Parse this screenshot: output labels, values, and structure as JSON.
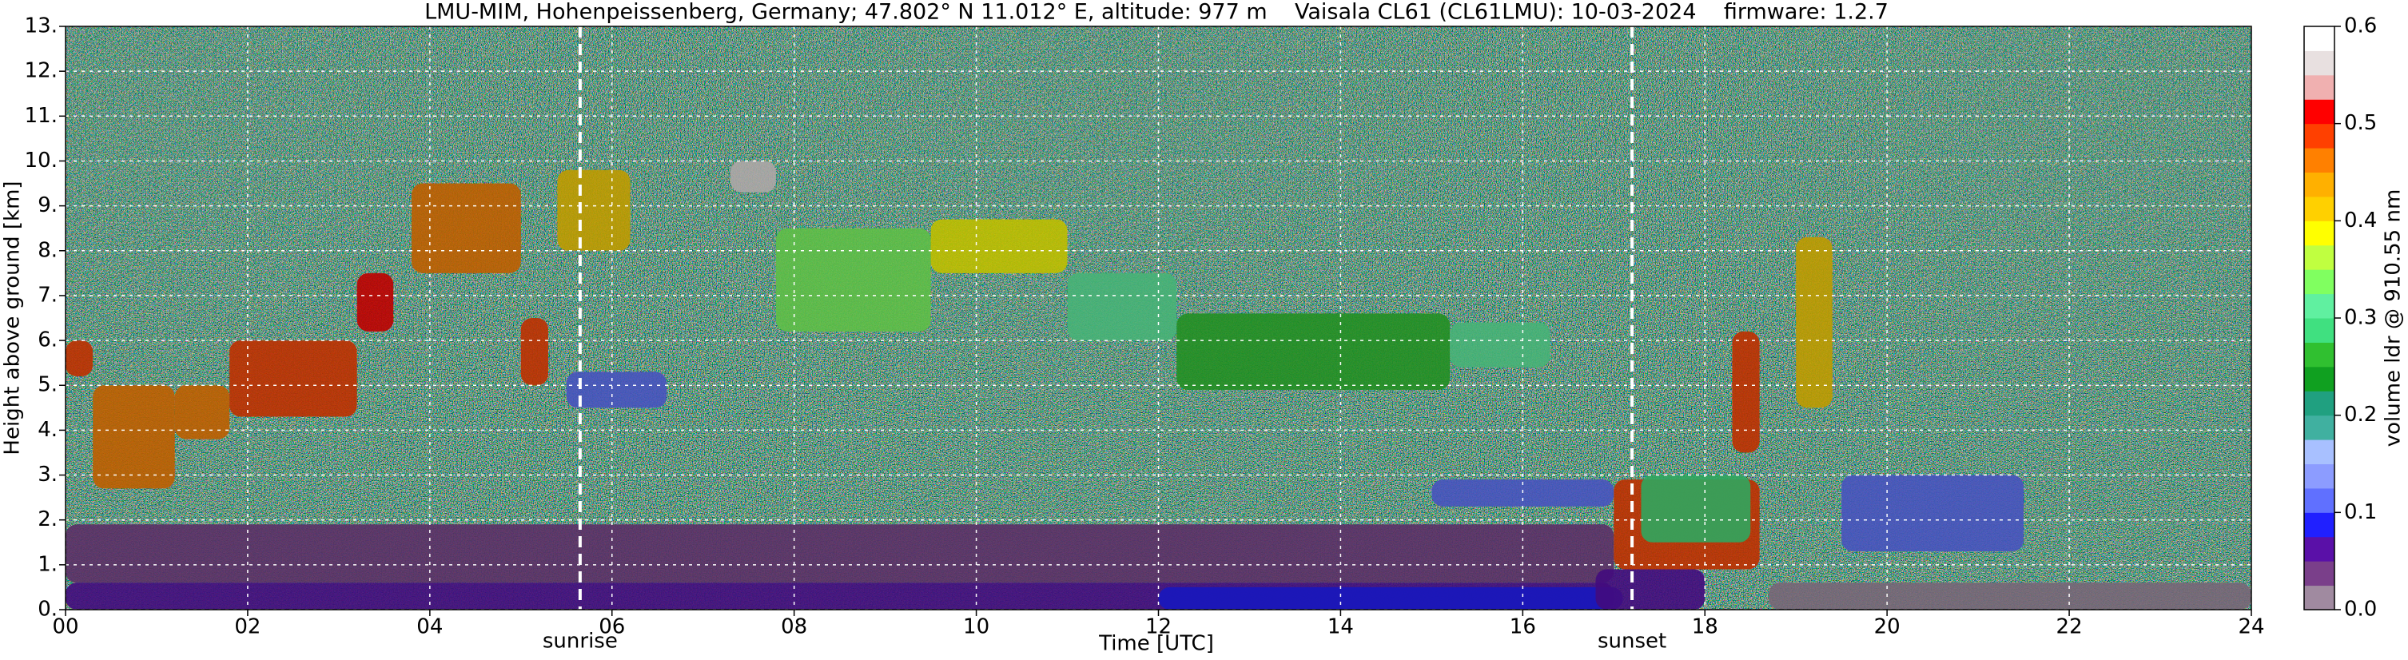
{
  "chart_data": {
    "type": "heatmap",
    "title": "LMU-MIM, Hohenpeissenberg, Germany; 47.802° N 11.012° E, altitude: 977 m    Vaisala CL61 (CL61LMU): 10-03-2024    firmware: 1.2.7",
    "x_label": "Time [UTC]",
    "y_label": "Height above ground [km]",
    "colorbar_label": "volume ldr @ 910.55 nm",
    "xlim": [
      0,
      24
    ],
    "xticks": [
      {
        "value": 0,
        "label": "00"
      },
      {
        "value": 2,
        "label": "02"
      },
      {
        "value": 4,
        "label": "04"
      },
      {
        "value": 6,
        "label": "06"
      },
      {
        "value": 8,
        "label": "08"
      },
      10,
      12,
      14,
      16,
      18,
      20,
      22,
      24
    ],
    "ylim": [
      0,
      13
    ],
    "yticks": [
      {
        "value": 0,
        "label": "0."
      },
      {
        "value": 1,
        "label": "1."
      },
      {
        "value": 2,
        "label": "2."
      },
      {
        "value": 3,
        "label": "3."
      },
      {
        "value": 4,
        "label": "4."
      },
      {
        "value": 5,
        "label": "5."
      },
      {
        "value": 6,
        "label": "6."
      },
      {
        "value": 7,
        "label": "7."
      },
      {
        "value": 8,
        "label": "8."
      },
      {
        "value": 9,
        "label": "9."
      },
      {
        "value": 10,
        "label": "10."
      },
      {
        "value": 11,
        "label": "11."
      },
      {
        "value": 12,
        "label": "12."
      },
      {
        "value": 13,
        "label": "13."
      }
    ],
    "clim": [
      0,
      0.6
    ],
    "cticks": [
      {
        "value": 0,
        "label": "0.0"
      },
      0.1,
      0.2,
      0.3,
      0.4,
      0.5,
      0.6
    ],
    "colormap": [
      "#a08aa0",
      "#7a3f8a",
      "#5a10a8",
      "#2020ff",
      "#6070ff",
      "#8c9cff",
      "#a8c0ff",
      "#40b0a0",
      "#20a080",
      "#10a020",
      "#30c030",
      "#40e080",
      "#60f0a0",
      "#80ff60",
      "#c0ff40",
      "#ffff00",
      "#ffd000",
      "#ffb000",
      "#ff8000",
      "#ff4000",
      "#ff0000",
      "#f0b0b0",
      "#e8e0e0",
      "#ffffff"
    ],
    "grid": true,
    "annotations": [
      {
        "text": "sunrise",
        "x": 5.65
      },
      {
        "text": "sunset",
        "x": 17.2
      }
    ],
    "regions": [
      {
        "t": [
          0,
          17
        ],
        "h": [
          0.6,
          1.9
        ],
        "ldr": 0.03
      },
      {
        "t": [
          0,
          17
        ],
        "h": [
          0,
          0.6
        ],
        "ldr": 0.05
      },
      {
        "t": [
          12,
          17.1
        ],
        "h": [
          0,
          0.5
        ],
        "ldr": 0.09
      },
      {
        "t": [
          16.8,
          18
        ],
        "h": [
          0,
          0.9
        ],
        "ldr": 0.06
      },
      {
        "t": [
          18.7,
          24
        ],
        "h": [
          0,
          0.6
        ],
        "ldr": 0.01
      },
      {
        "t": [
          0,
          0.3
        ],
        "h": [
          5.2,
          6
        ],
        "ldr": 0.48
      },
      {
        "t": [
          0.3,
          1.2
        ],
        "h": [
          2.7,
          5
        ],
        "ldr": 0.47
      },
      {
        "t": [
          1.2,
          1.8
        ],
        "h": [
          3.8,
          5
        ],
        "ldr": 0.46
      },
      {
        "t": [
          1.8,
          3.2
        ],
        "h": [
          4.3,
          6
        ],
        "ldr": 0.49
      },
      {
        "t": [
          3.2,
          3.6
        ],
        "h": [
          6.2,
          7.5
        ],
        "ldr": 0.5
      },
      {
        "t": [
          3.8,
          5.0
        ],
        "h": [
          7.5,
          9.5
        ],
        "ldr": 0.45
      },
      {
        "t": [
          5.0,
          5.3
        ],
        "h": [
          5,
          6.5
        ],
        "ldr": 0.48
      },
      {
        "t": [
          5.4,
          6.2
        ],
        "h": [
          8,
          9.8
        ],
        "ldr": 0.4
      },
      {
        "t": [
          5.5,
          6.6
        ],
        "h": [
          4.5,
          5.3
        ],
        "ldr": 0.1
      },
      {
        "t": [
          7.3,
          7.8
        ],
        "h": [
          9.3,
          10
        ],
        "ldr": 0.55
      },
      {
        "t": [
          7.8,
          9.5
        ],
        "h": [
          6.2,
          8.5
        ],
        "ldr": 0.33
      },
      {
        "t": [
          9.5,
          11
        ],
        "h": [
          7.5,
          8.7
        ],
        "ldr": 0.38
      },
      {
        "t": [
          11,
          12.2
        ],
        "h": [
          6,
          7.5
        ],
        "ldr": 0.32
      },
      {
        "t": [
          12.2,
          15.2
        ],
        "h": [
          4.9,
          6.6
        ],
        "ldr": 0.27
      },
      {
        "t": [
          15.2,
          16.3
        ],
        "h": [
          5.4,
          6.4
        ],
        "ldr": 0.3
      },
      {
        "t": [
          15,
          17
        ],
        "h": [
          2.3,
          2.9
        ],
        "ldr": 0.1
      },
      {
        "t": [
          17,
          18.6
        ],
        "h": [
          0.9,
          2.9
        ],
        "ldr": 0.48
      },
      {
        "t": [
          17.3,
          18.5
        ],
        "h": [
          1.5,
          3
        ],
        "ldr": 0.28
      },
      {
        "t": [
          18.3,
          18.6
        ],
        "h": [
          3.5,
          6.2
        ],
        "ldr": 0.48
      },
      {
        "t": [
          19,
          19.4
        ],
        "h": [
          4.5,
          8.3
        ],
        "ldr": 0.42
      },
      {
        "t": [
          19.5,
          21.5
        ],
        "h": [
          1.3,
          3
        ],
        "ldr": 0.12
      }
    ]
  }
}
